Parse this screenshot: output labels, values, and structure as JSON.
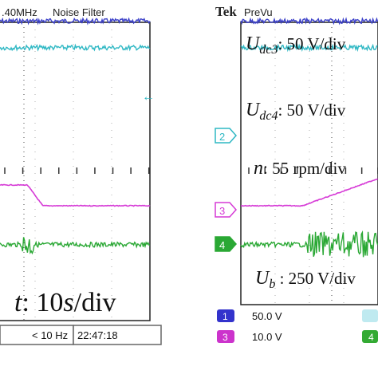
{
  "left_scope": {
    "header_text": ".40MHz",
    "header_mode": "Noise Filter",
    "time_scale": "t: 10s/div",
    "status_freq": "< 10 Hz",
    "status_clock": "22:47:18"
  },
  "right_scope": {
    "brand": "Tek",
    "brand_mode": "PreVu",
    "labels": {
      "udc3": "U_dc3: 50 V/div",
      "udc4": "U_dc4: 50 V/div",
      "n": "n: 55 rpm/div",
      "ub": "U_b: 250 V/div"
    },
    "channel_markers": [
      "2",
      "3",
      "4"
    ],
    "channel_readout": [
      {
        "channel": "1",
        "scale": "50.0 V",
        "color": "#3333cc"
      },
      {
        "channel": "3",
        "scale": "10.0 V",
        "color": "#cc33cc"
      },
      {
        "channel": "4",
        "scale": "",
        "color": "#33aa33"
      }
    ]
  },
  "colors": {
    "ch1": "#3a3fc8",
    "ch2": "#2fb8c4",
    "ch3": "#d63ad6",
    "ch4": "#2aa834",
    "grid": "#333333",
    "background": "#ffffff"
  },
  "chart_data": [
    {
      "type": "line",
      "title": "",
      "time_scale": "10 s/div",
      "series": [
        {
          "name": "U_dc3",
          "channel": 1,
          "values": [
            [
              0,
              4.8
            ],
            [
              10,
              4.8
            ]
          ]
        },
        {
          "name": "U_dc4",
          "channel": 2,
          "values": [
            [
              0,
              4.05
            ],
            [
              10,
              4.05
            ]
          ]
        },
        {
          "name": "n",
          "channel": 3,
          "values": [
            [
              0,
              1.0
            ],
            [
              2.0,
              1.0
            ],
            [
              3.0,
              0.0
            ],
            [
              10,
              0.0
            ]
          ]
        },
        {
          "name": "U_b",
          "channel": 4,
          "values": [
            [
              0,
              -1.5
            ],
            [
              10,
              -1.5
            ]
          ]
        }
      ],
      "grid": true
    },
    {
      "type": "line",
      "title": "",
      "time_scale": "10 s/div",
      "series": [
        {
          "name": "U_dc3",
          "channel": 1,
          "values": [
            [
              0,
              4.8
            ],
            [
              10,
              4.8
            ]
          ]
        },
        {
          "name": "U_dc4",
          "channel": 2,
          "values": [
            [
              0,
              4.05
            ],
            [
              10,
              4.05
            ]
          ]
        },
        {
          "name": "n",
          "channel": 3,
          "values": [
            [
              0,
              0.0
            ],
            [
              4.5,
              0.0
            ],
            [
              10,
              1.0
            ]
          ]
        },
        {
          "name": "U_b",
          "channel": 4,
          "values": [
            [
              0,
              -1.5
            ],
            [
              10,
              -1.5
            ]
          ]
        }
      ],
      "grid": true
    }
  ]
}
